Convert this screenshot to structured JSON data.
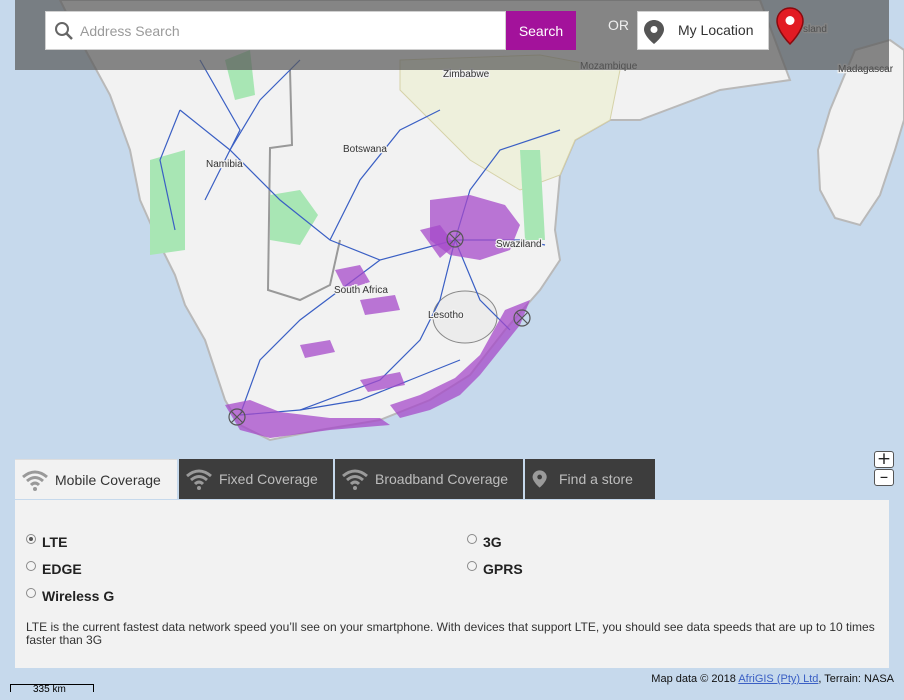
{
  "search": {
    "placeholder": "Address Search",
    "button_label": "Search",
    "or_label": "OR",
    "my_location_label": "My Location"
  },
  "map": {
    "labels": {
      "zimbabwe": "Zimbabwe",
      "mozambique": "Mozambique",
      "madagascar": "Madagascar",
      "namibia": "Namibia",
      "botswana": "Botswana",
      "swaziland": "Swaziland",
      "south_africa": "South Africa",
      "lesotho": "Lesotho",
      "island_fragment": "sland"
    },
    "colors": {
      "water": "#c6d9ec",
      "land": "#f2f2f2",
      "coverage": "#a64ac9",
      "roads": "#3a5fc4",
      "parks": "#a8e6b4"
    },
    "zoom_in": "+",
    "zoom_out": "–",
    "attribution_prefix": "Map data © 2018 ",
    "attribution_link": "AfriGIS (Pty) Ltd",
    "attribution_suffix": ", Terrain: NASA",
    "scale_label": "335 km"
  },
  "tabs": [
    {
      "label": "Mobile Coverage",
      "icon": "wifi-icon",
      "active": true
    },
    {
      "label": "Fixed Coverage",
      "icon": "wifi-icon",
      "active": false
    },
    {
      "label": "Broadband Coverage",
      "icon": "wifi-icon",
      "active": false
    },
    {
      "label": "Find a store",
      "icon": "location-pin-icon",
      "active": false
    }
  ],
  "options": [
    {
      "label": "LTE",
      "selected": true
    },
    {
      "label": "3G",
      "selected": false
    },
    {
      "label": "EDGE",
      "selected": false
    },
    {
      "label": "GPRS",
      "selected": false
    },
    {
      "label": "Wireless G",
      "selected": false
    }
  ],
  "description": "LTE is the current fastest data network speed you’ll see on your smartphone. With devices that support LTE, you should see data speeds that are up to 10 times faster than 3G"
}
